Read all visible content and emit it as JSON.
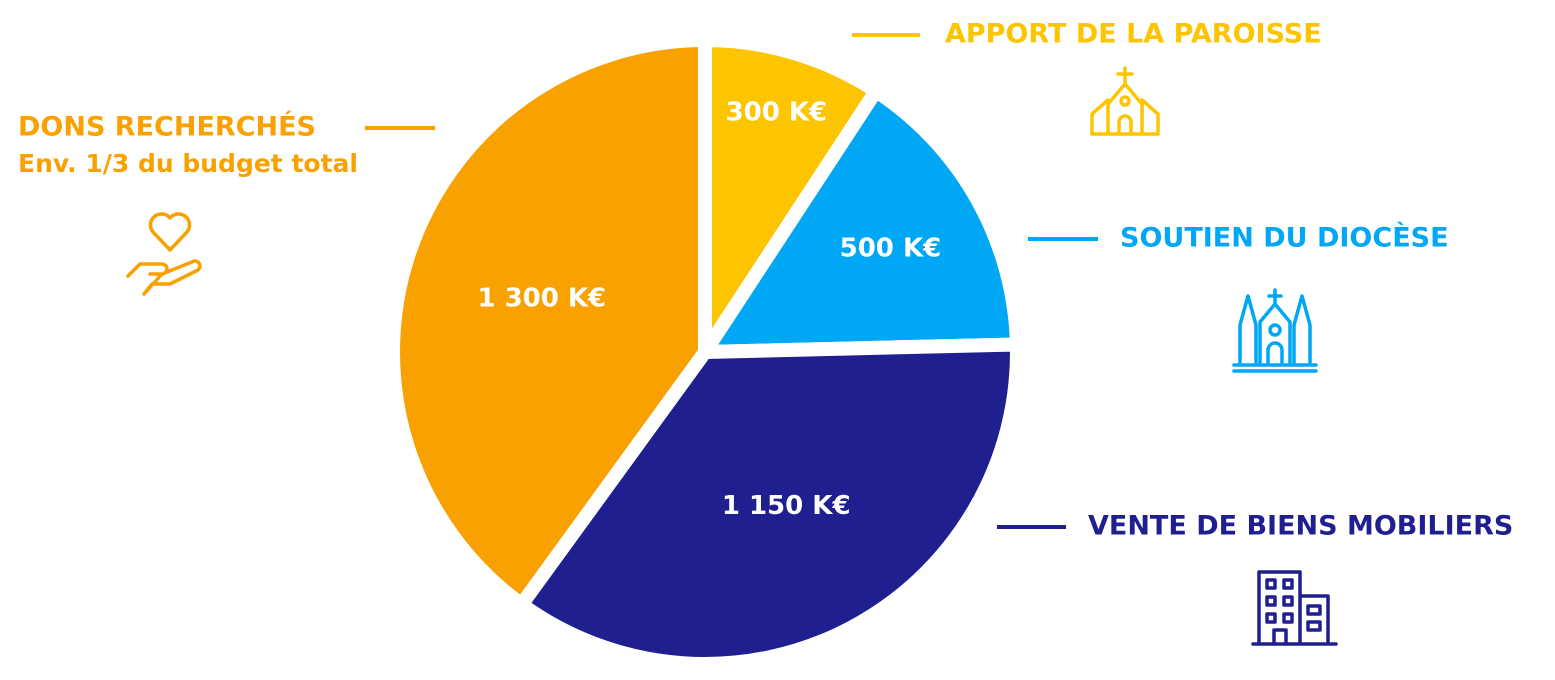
{
  "chart_data": {
    "type": "pie",
    "categories": [
      "APPORT DE LA PAROISSE",
      "SOUTIEN DU DIOCÈSE",
      "VENTE DE BIENS MOBILIERS",
      "DONS RECHERCHÉS"
    ],
    "values": [
      300,
      500,
      1150,
      1300
    ],
    "value_labels": [
      "300 K€",
      "500 K€",
      "1 150 K€",
      "1 300 K€"
    ],
    "colors": [
      "#fcc500",
      "#00a7f5",
      "#1f1f8f",
      "#f9a100"
    ],
    "annotations": [
      "Env. 1/3 du budget total"
    ]
  }
}
